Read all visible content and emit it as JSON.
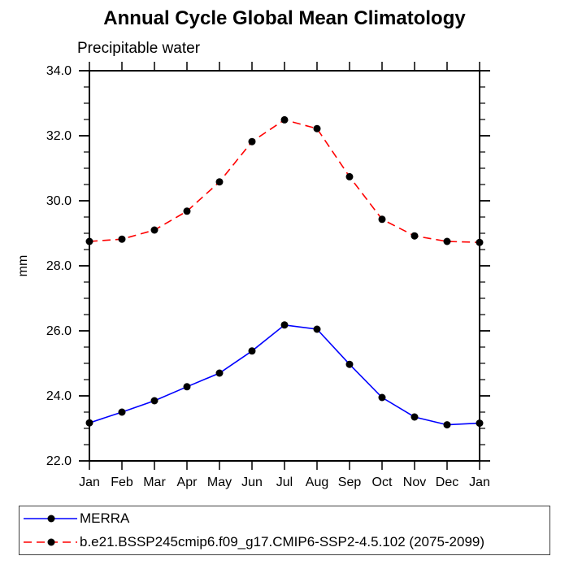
{
  "chart_data": {
    "type": "line",
    "title": "Annual Cycle Global Mean Climatology",
    "subtitle": "Precipitable water",
    "ylabel": "mm",
    "x_categories": [
      "Jan",
      "Feb",
      "Mar",
      "Apr",
      "May",
      "Jun",
      "Jul",
      "Aug",
      "Sep",
      "Oct",
      "Nov",
      "Dec",
      "Jan"
    ],
    "ylim": [
      22.0,
      34.0
    ],
    "y_ticks": {
      "values": [
        22,
        24,
        26,
        28,
        30,
        32,
        34
      ],
      "labels": [
        "22.0",
        "24.0",
        "26.0",
        "28.0",
        "30.0",
        "32.0",
        "34.0"
      ]
    },
    "y_minor_step": 0.5,
    "grid": false,
    "legend_position": "bottom",
    "marker": "filled-circle",
    "marker_color": "#000000",
    "axis_color": "#000000",
    "series": [
      {
        "name": "MERRA",
        "color": "#0000ff",
        "style": "solid",
        "values": [
          23.17,
          23.5,
          23.85,
          24.28,
          24.7,
          25.38,
          26.18,
          26.05,
          24.97,
          23.95,
          23.35,
          23.11,
          23.16
        ]
      },
      {
        "name": "b.e21.BSSP245cmip6.f09_g17.CMIP6-SSP2-4.5.102 (2075-2099)",
        "color": "#ff0000",
        "style": "dashed",
        "values": [
          28.75,
          28.82,
          29.1,
          29.68,
          30.58,
          31.82,
          32.49,
          32.22,
          30.74,
          29.43,
          28.92,
          28.75,
          28.72
        ]
      }
    ]
  }
}
